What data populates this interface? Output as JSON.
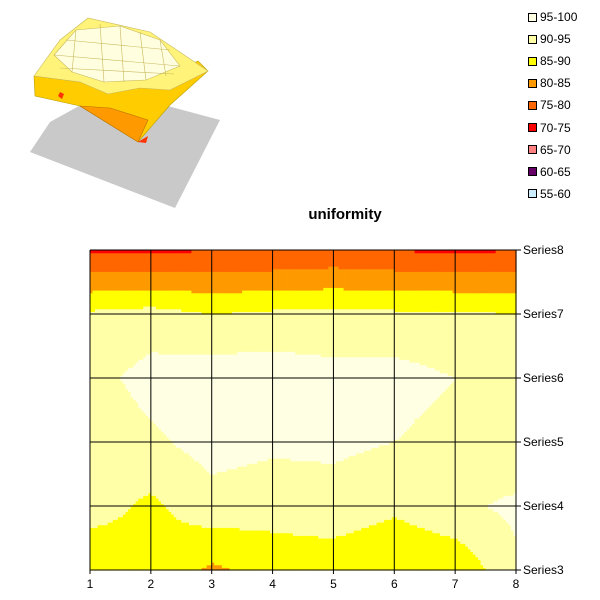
{
  "chart_data": {
    "type": "contour",
    "title": "uniformity",
    "x": [
      1,
      2,
      3,
      4,
      5,
      6,
      7,
      8
    ],
    "series_axis": [
      "Series3",
      "Series4",
      "Series5",
      "Series6",
      "Series7",
      "Series8"
    ],
    "xlim": [
      1,
      8
    ],
    "grid": true,
    "legend_position": "top-right",
    "bands": [
      {
        "label": "95-100",
        "color": "#FFFFE4"
      },
      {
        "label": "90-95",
        "color": "#FFFFA8"
      },
      {
        "label": "85-90",
        "color": "#FFFF00"
      },
      {
        "label": "80-85",
        "color": "#FF9900"
      },
      {
        "label": "75-80",
        "color": "#FF6600"
      },
      {
        "label": "70-75",
        "color": "#FF0000"
      },
      {
        "label": "65-70",
        "color": "#FF8080"
      },
      {
        "label": "60-65",
        "color": "#660066"
      },
      {
        "label": "55-60",
        "color": "#CCECFF"
      }
    ],
    "values_by_series": {
      "Series3": [
        86,
        89,
        84,
        87,
        87,
        85,
        86,
        94
      ],
      "Series4": [
        92,
        89,
        93,
        92,
        93,
        91,
        94,
        96
      ],
      "Series5": [
        91,
        94,
        97,
        96,
        96,
        95,
        93,
        91
      ],
      "Series6": [
        93,
        97,
        98,
        98,
        97,
        97,
        95,
        92
      ],
      "Series7": [
        91,
        92,
        90,
        91,
        91,
        91,
        91,
        90
      ],
      "Series8": [
        74,
        74,
        75,
        75,
        76,
        75,
        74,
        75
      ]
    }
  }
}
